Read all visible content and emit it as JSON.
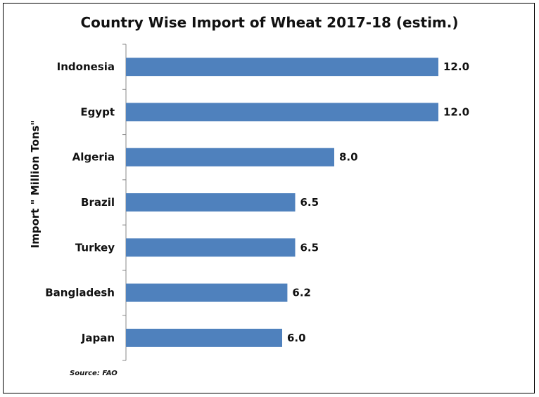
{
  "chart_data": {
    "type": "bar",
    "orientation": "horizontal",
    "title": "Country Wise Import of Wheat 2017-18 (estim.)",
    "ylabel": "Import \" Million Tons\"",
    "categories": [
      "Indonesia",
      "Egypt",
      "Algeria",
      "Brazil",
      "Turkey",
      "Bangladesh",
      "Japan"
    ],
    "values": [
      12.0,
      12.0,
      8.0,
      6.5,
      6.5,
      6.2,
      6.0
    ],
    "value_labels": [
      "12.0",
      "12.0",
      "8.0",
      "6.5",
      "6.5",
      "6.2",
      "6.0"
    ],
    "xlim": [
      0,
      16.5
    ],
    "bar_color": "#4F81BD",
    "grid": false,
    "legend": "none"
  },
  "source_note": "Source: FAO"
}
